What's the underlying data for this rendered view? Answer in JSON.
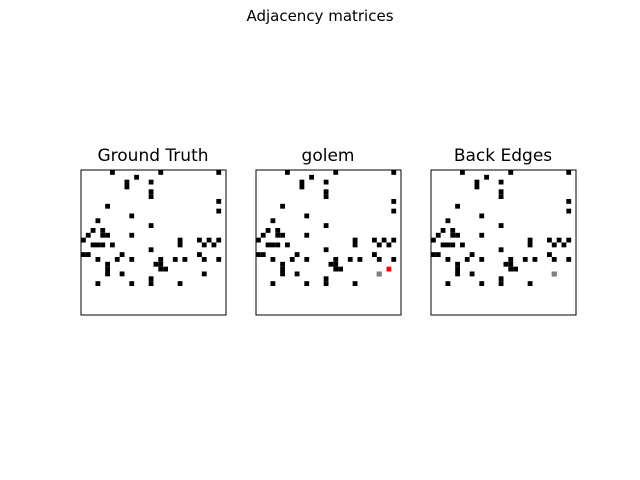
{
  "figure": {
    "title": "Adjacency matrices"
  },
  "chart_data": [
    {
      "type": "heatmap",
      "title": "Ground Truth",
      "n": 30,
      "cell_values": "1 = edge (black), 0 = none (white)",
      "cells": [
        [
          0,
          6
        ],
        [
          0,
          16
        ],
        [
          0,
          28
        ],
        [
          1,
          11
        ],
        [
          2,
          9
        ],
        [
          2,
          14
        ],
        [
          3,
          9
        ],
        [
          4,
          14
        ],
        [
          5,
          14
        ],
        [
          6,
          28
        ],
        [
          7,
          5
        ],
        [
          8,
          28
        ],
        [
          9,
          10
        ],
        [
          10,
          3
        ],
        [
          11,
          14
        ],
        [
          12,
          2
        ],
        [
          12,
          4
        ],
        [
          13,
          1
        ],
        [
          13,
          4
        ],
        [
          13,
          5
        ],
        [
          13,
          10
        ],
        [
          14,
          0
        ],
        [
          14,
          20
        ],
        [
          14,
          24
        ],
        [
          14,
          26
        ],
        [
          14,
          28
        ],
        [
          15,
          2
        ],
        [
          15,
          3
        ],
        [
          15,
          4
        ],
        [
          15,
          6
        ],
        [
          15,
          20
        ],
        [
          15,
          25
        ],
        [
          15,
          27
        ],
        [
          16,
          14
        ],
        [
          17,
          0
        ],
        [
          17,
          1
        ],
        [
          17,
          8
        ],
        [
          17,
          24
        ],
        [
          18,
          3
        ],
        [
          18,
          7
        ],
        [
          18,
          10
        ],
        [
          18,
          16
        ],
        [
          18,
          19
        ],
        [
          18,
          21
        ],
        [
          18,
          25
        ],
        [
          18,
          28
        ],
        [
          19,
          5
        ],
        [
          19,
          15
        ],
        [
          19,
          16
        ],
        [
          20,
          5
        ],
        [
          20,
          16
        ],
        [
          20,
          17
        ],
        [
          21,
          5
        ],
        [
          21,
          8
        ],
        [
          21,
          25
        ],
        [
          22,
          14
        ],
        [
          23,
          3
        ],
        [
          23,
          10
        ],
        [
          23,
          14
        ],
        [
          23,
          20
        ]
      ],
      "colors": {
        "edge": "#000000",
        "empty": "#ffffff"
      }
    },
    {
      "type": "heatmap",
      "title": "golem",
      "n": 30,
      "cell_values": "1 = predicted edge (black); red = incorrect edge",
      "cells": [
        [
          0,
          6
        ],
        [
          0,
          16
        ],
        [
          0,
          28
        ],
        [
          1,
          11
        ],
        [
          2,
          9
        ],
        [
          2,
          14
        ],
        [
          3,
          9
        ],
        [
          4,
          14
        ],
        [
          5,
          14
        ],
        [
          6,
          28
        ],
        [
          7,
          5
        ],
        [
          8,
          28
        ],
        [
          9,
          10
        ],
        [
          10,
          3
        ],
        [
          11,
          14
        ],
        [
          12,
          2
        ],
        [
          12,
          4
        ],
        [
          13,
          1
        ],
        [
          13,
          4
        ],
        [
          13,
          5
        ],
        [
          13,
          10
        ],
        [
          14,
          0
        ],
        [
          14,
          20
        ],
        [
          14,
          24
        ],
        [
          14,
          26
        ],
        [
          14,
          28
        ],
        [
          15,
          2
        ],
        [
          15,
          3
        ],
        [
          15,
          4
        ],
        [
          15,
          6
        ],
        [
          15,
          20
        ],
        [
          15,
          25
        ],
        [
          15,
          27
        ],
        [
          16,
          14
        ],
        [
          17,
          0
        ],
        [
          17,
          1
        ],
        [
          17,
          8
        ],
        [
          17,
          24
        ],
        [
          18,
          3
        ],
        [
          18,
          7
        ],
        [
          18,
          10
        ],
        [
          18,
          16
        ],
        [
          18,
          19
        ],
        [
          18,
          21
        ],
        [
          18,
          25
        ],
        [
          18,
          28
        ],
        [
          19,
          5
        ],
        [
          19,
          15
        ],
        [
          19,
          16
        ],
        [
          20,
          5
        ],
        [
          20,
          16
        ],
        [
          20,
          17
        ],
        [
          21,
          5
        ],
        [
          21,
          8
        ],
        [
          21,
          25
        ],
        [
          22,
          14
        ],
        [
          23,
          3
        ],
        [
          23,
          10
        ],
        [
          23,
          14
        ],
        [
          23,
          20
        ]
      ],
      "special": [
        {
          "r": 20,
          "c": 27,
          "color": "#ff0000"
        },
        {
          "r": 21,
          "c": 25,
          "color": "#808080"
        }
      ],
      "colors": {
        "edge": "#000000",
        "empty": "#ffffff"
      }
    },
    {
      "type": "heatmap",
      "title": "Back Edges",
      "n": 30,
      "cell_values": "1 = edge (black); gray = back edge",
      "cells": [
        [
          0,
          6
        ],
        [
          0,
          16
        ],
        [
          0,
          28
        ],
        [
          1,
          11
        ],
        [
          2,
          9
        ],
        [
          2,
          14
        ],
        [
          3,
          9
        ],
        [
          4,
          14
        ],
        [
          5,
          14
        ],
        [
          6,
          28
        ],
        [
          7,
          5
        ],
        [
          8,
          28
        ],
        [
          9,
          10
        ],
        [
          10,
          3
        ],
        [
          11,
          14
        ],
        [
          12,
          2
        ],
        [
          12,
          4
        ],
        [
          13,
          1
        ],
        [
          13,
          4
        ],
        [
          13,
          5
        ],
        [
          13,
          10
        ],
        [
          14,
          0
        ],
        [
          14,
          20
        ],
        [
          14,
          24
        ],
        [
          14,
          26
        ],
        [
          14,
          28
        ],
        [
          15,
          2
        ],
        [
          15,
          3
        ],
        [
          15,
          4
        ],
        [
          15,
          6
        ],
        [
          15,
          20
        ],
        [
          15,
          25
        ],
        [
          15,
          27
        ],
        [
          16,
          14
        ],
        [
          17,
          0
        ],
        [
          17,
          1
        ],
        [
          17,
          8
        ],
        [
          17,
          24
        ],
        [
          18,
          3
        ],
        [
          18,
          7
        ],
        [
          18,
          10
        ],
        [
          18,
          16
        ],
        [
          18,
          19
        ],
        [
          18,
          21
        ],
        [
          18,
          25
        ],
        [
          18,
          28
        ],
        [
          19,
          5
        ],
        [
          19,
          15
        ],
        [
          19,
          16
        ],
        [
          20,
          5
        ],
        [
          20,
          16
        ],
        [
          20,
          17
        ],
        [
          21,
          5
        ],
        [
          21,
          8
        ],
        [
          21,
          25
        ],
        [
          22,
          14
        ],
        [
          23,
          3
        ],
        [
          23,
          10
        ],
        [
          23,
          14
        ],
        [
          23,
          20
        ]
      ],
      "special": [
        {
          "r": 21,
          "c": 25,
          "color": "#808080"
        }
      ],
      "colors": {
        "edge": "#000000",
        "empty": "#ffffff"
      }
    }
  ]
}
